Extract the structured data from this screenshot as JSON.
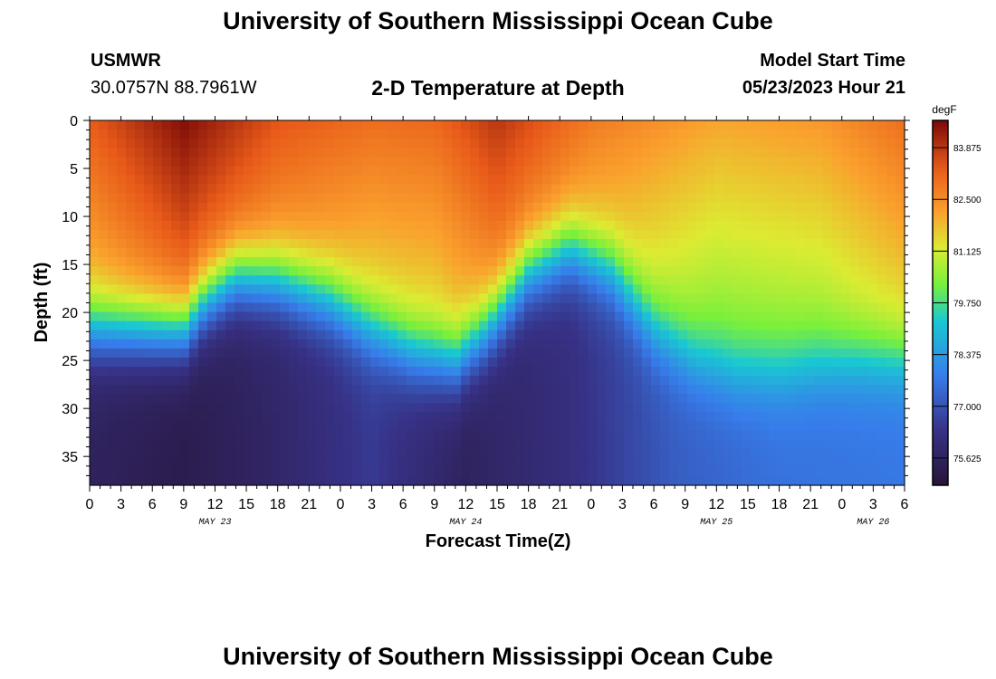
{
  "header": {
    "title_top": "University of Southern Mississippi Ocean Cube",
    "title_bottom": "University of Southern Mississippi Ocean Cube",
    "station_id": "USMWR",
    "station_coords": "30.0757N  88.7961W",
    "model_start_label": "Model Start Time",
    "model_start_value": "05/23/2023 Hour 21"
  },
  "chart_data": {
    "type": "heatmap",
    "title": "2-D Temperature at Depth",
    "xlabel": "Forecast Time(Z)",
    "ylabel": "Depth (ft)",
    "xlim": [
      0,
      78
    ],
    "ylim": [
      38,
      0
    ],
    "x_tick_labels": [
      "0",
      "3",
      "6",
      "9",
      "12",
      "15",
      "18",
      "21",
      "0",
      "3",
      "6",
      "9",
      "12",
      "15",
      "18",
      "21",
      "0",
      "3",
      "6",
      "9",
      "12",
      "15",
      "18",
      "21",
      "0",
      "3",
      "6"
    ],
    "y_ticks": [
      0,
      5,
      10,
      15,
      20,
      25,
      30,
      35
    ],
    "day_labels": [
      {
        "label": "MAY 23",
        "hour": 12
      },
      {
        "label": "MAY 24",
        "hour": 36
      },
      {
        "label": "MAY 25",
        "hour": 60
      },
      {
        "label": "MAY 26",
        "hour": 75
      }
    ],
    "colorbar": {
      "unit": "degF",
      "min": 74.9,
      "max": 84.6,
      "ticks": [
        83.875,
        82.5,
        81.125,
        79.75,
        78.375,
        77.0,
        75.625
      ],
      "tick_labels": [
        "83.875",
        "82.500",
        "81.125",
        "79.750",
        "78.375",
        "77.000",
        "75.625"
      ]
    },
    "thermocline_depth_ft": {
      "hours": [
        0,
        5,
        9,
        11,
        14,
        18,
        23,
        27,
        31,
        35,
        38,
        42,
        46,
        50,
        54,
        58,
        62,
        66,
        70,
        74,
        78
      ],
      "values": [
        22.0,
        22.0,
        22.0,
        19.0,
        16.5,
        17.0,
        19.0,
        22.0,
        24.5,
        25.5,
        22.0,
        16.0,
        13.5,
        16.0,
        22.0,
        25.5,
        27.0,
        27.0,
        26.0,
        25.5,
        25.5
      ]
    },
    "surface_temp_degF": {
      "hours": [
        0,
        9,
        18,
        27,
        33,
        39,
        48,
        60,
        70,
        78
      ],
      "values": [
        83.3,
        84.5,
        83.4,
        83.0,
        83.1,
        83.9,
        82.8,
        82.1,
        82.3,
        83.0
      ]
    },
    "bottom_temp_degF": {
      "hours": [
        0,
        9,
        18,
        27,
        36,
        46,
        56,
        66,
        78
      ],
      "values": [
        75.6,
        75.3,
        75.8,
        76.5,
        75.6,
        76.2,
        77.2,
        77.6,
        77.7
      ]
    }
  }
}
